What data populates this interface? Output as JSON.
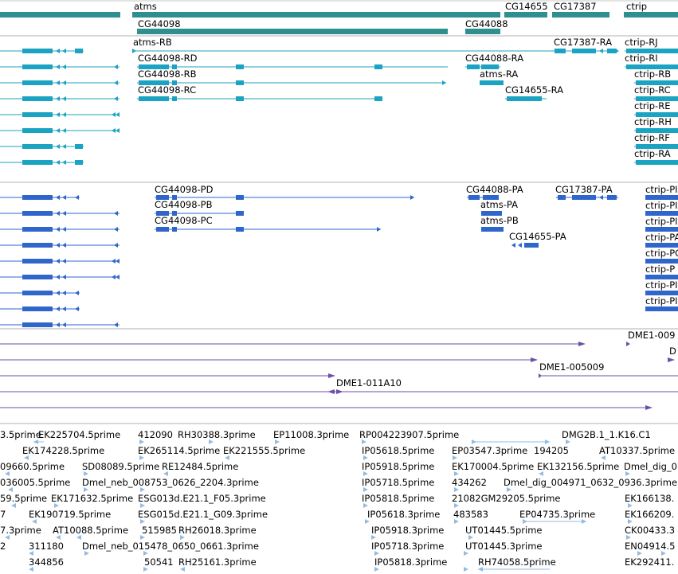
{
  "colors": {
    "gene": "#2f8f8f",
    "transcript": "#1ba3c2",
    "protein": "#2f66cc",
    "purple": "#6b52a8",
    "est": "#8fbde6",
    "divider": "#b0b0b0"
  },
  "genes": {
    "atms": "atms",
    "cg44098": "CG44098",
    "cg14655": "CG14655",
    "cg17387": "CG17387",
    "cg44088": "CG44088",
    "ctrip": "ctrip"
  },
  "transcripts": {
    "atms_rb": "atms-RB",
    "cg44098_rd": "CG44098-RD",
    "cg44098_rb": "CG44098-RB",
    "cg44098_rc": "CG44098-RC",
    "cg17387_ra": "CG17387-RA",
    "cg44088_ra": "CG44088-RA",
    "atms_ra": "atms-RA",
    "cg14655_ra": "CG14655-RA",
    "ctrip_rj": "ctrip-RJ",
    "ctrip_ri": "ctrip-RI",
    "ctrip_rb": "ctrip-RB",
    "ctrip_rc": "ctrip-RC",
    "ctrip_re": "ctrip-RE",
    "ctrip_rh": "ctrip-RH",
    "ctrip_rf": "ctrip-RF",
    "ctrip_ra": "ctrip-RA"
  },
  "proteins": {
    "cg44098_pd": "CG44098-PD",
    "cg44098_pb": "CG44098-PB",
    "cg44098_pc": "CG44098-PC",
    "cg44088_pa": "CG44088-PA",
    "cg17387_pa": "CG17387-PA",
    "atms_pa": "atms-PA",
    "atms_pb": "atms-PB",
    "cg14655_pa": "CG14655-PA",
    "ctrip_p1": "ctrip-PI",
    "ctrip_p2": "ctrip-PI",
    "ctrip_p3": "ctrip-PI",
    "ctrip_p4": "ctrip-PA",
    "ctrip_p5": "ctrip-PC",
    "ctrip_p6": "ctrip-P",
    "ctrip_p7": "ctrip-PI",
    "ctrip_p8": "ctrip-PI"
  },
  "clones": {
    "dme1_009": "DME1-009",
    "dme1_d": "D",
    "dme1_005009": "DME1-005009",
    "dme1_011a10": "DME1-011A10"
  },
  "ests": {
    "e1": "3.5prime",
    "e2": "EK225704.5prime",
    "e3": "412090",
    "e4": "RH30388.3prime",
    "e5": "EP11008.3prime",
    "e6": "RP004223907.5prime",
    "e7": "DMG2B.1_1.K16.C1",
    "e8": "EK174228.5prime",
    "e9": "EK265114.5prime",
    "e10": "EK221555.5prime",
    "e11": "IP05618.5prime",
    "e12": "EP03547.3prime",
    "e13": "194205",
    "e14": "AT10337.5prime",
    "e15": "09660.5prime",
    "e16": "SD08089.5prime",
    "e17": "RE12484.5prime",
    "e18": "IP05918.5prime",
    "e19": "EK170004.5prime",
    "e20": "EK132156.5prime",
    "e21": "Dmel_dig_0",
    "e22": "036005.5prime",
    "e23": "Dmel_neb_008753_0626_2204.3prime",
    "e24": "IP05718.5prime",
    "e25": "434262",
    "e26": "Dmel_dig_004971_0632_0936.3prime",
    "e27": "59.5prime",
    "e28": "EK171632.5prime",
    "e29": "ESG013d.E21.1_F05.3prime",
    "e30": "IP05818.5prime",
    "e31": "21082GM29205.5prime",
    "e32": "EK166138.",
    "e33": "7",
    "e34": "EK190719.5prime",
    "e35": "ESG015d.E21.1_G09.3prime",
    "e36": "IP05618.3prime",
    "e37": "483583",
    "e38": "EP04735.3prime",
    "e39": "EK166209.",
    "e40": "7.3prime",
    "e41": "AT10088.5prime",
    "e42": "515985",
    "e43": "RH26018.3prime",
    "e44": "IP05918.3prime",
    "e45": "UT01445.5prime",
    "e46": "CK00433.3",
    "e47": "2",
    "e48": "311180",
    "e49": "Dmel_neb_015478_0650_0661.3prime",
    "e50": "IP05718.3prime",
    "e51": "UT01445.3prime",
    "e52": "EN04914.5",
    "e53": "344856",
    "e54": "50541",
    "e55": "RH25161.3prime",
    "e56": "IP05818.3prime",
    "e57": "RH74058.5prime",
    "e58": "EK292411."
  }
}
